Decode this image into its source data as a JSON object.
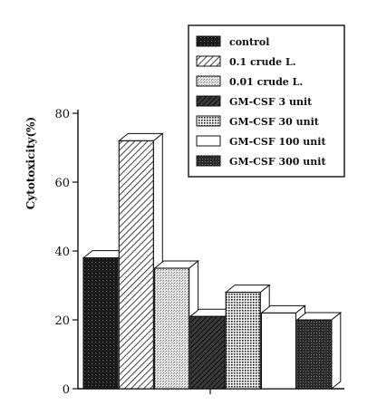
{
  "chart_data": {
    "type": "bar",
    "ylabel": "Cytotoxicity(%)",
    "ylim": [
      0,
      80
    ],
    "yticks": [
      0,
      20,
      40,
      60,
      80
    ],
    "categories": [
      "control",
      "0.1 crude L.",
      "0.01 crude L.",
      "GM-CSF 3 unit",
      "GM-CSF 30 unit",
      "GM-CSF 100 unit",
      "GM-CSF 300 unit"
    ],
    "values": [
      38,
      72,
      35,
      21,
      28,
      22,
      20
    ],
    "legend_position": "top-right",
    "bar_style": "3d",
    "fills": [
      "solid-dark",
      "diagonal-hatch",
      "light-stipple",
      "dark-diagonal",
      "fine-grid",
      "white",
      "dark-stipple"
    ]
  }
}
